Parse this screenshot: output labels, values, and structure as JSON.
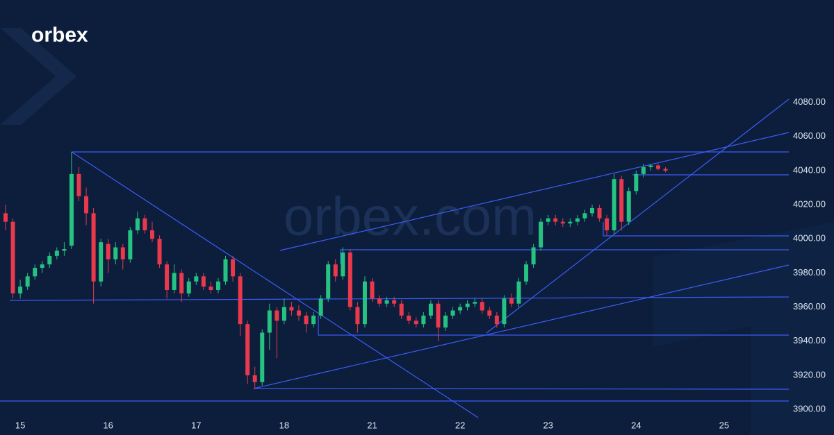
{
  "logo": "orbex",
  "watermark": "orbex.com",
  "chart_data": {
    "type": "candlestick",
    "up_color": "#26c281",
    "down_color": "#e8394d",
    "ylim": [
      3885,
      4140
    ],
    "yticks": [
      {
        "value": 3900,
        "label": "3900.00"
      },
      {
        "value": 3920,
        "label": "3920.00"
      },
      {
        "value": 3940,
        "label": "3940.00"
      },
      {
        "value": 3960,
        "label": "3960.00"
      },
      {
        "value": 3980,
        "label": "3980.00"
      },
      {
        "value": 4000,
        "label": "4000.00"
      },
      {
        "value": 4020,
        "label": "4020.00"
      },
      {
        "value": 4040,
        "label": "4040.00"
      },
      {
        "value": 4060,
        "label": "4060.00"
      },
      {
        "value": 4080,
        "label": "4080.00"
      }
    ],
    "categories": [
      null,
      null,
      "15",
      null,
      null,
      null,
      null,
      null,
      null,
      null,
      null,
      null,
      null,
      null,
      "16",
      null,
      null,
      null,
      null,
      null,
      null,
      null,
      null,
      null,
      null,
      null,
      "17",
      null,
      null,
      null,
      null,
      null,
      null,
      null,
      null,
      null,
      null,
      null,
      "18",
      null,
      null,
      null,
      null,
      null,
      null,
      null,
      null,
      null,
      null,
      null,
      "21",
      null,
      null,
      null,
      null,
      null,
      null,
      null,
      null,
      null,
      null,
      null,
      "22",
      null,
      null,
      null,
      null,
      null,
      null,
      null,
      null,
      null,
      null,
      null,
      "23",
      null,
      null,
      null,
      null,
      null,
      null,
      null,
      null,
      null,
      null,
      null,
      "24",
      null,
      null,
      null,
      null,
      null,
      null,
      null,
      null,
      null,
      null,
      null,
      "25"
    ],
    "open": [
      4015,
      4010,
      3968,
      3972,
      3978,
      3983,
      3985,
      3990,
      3993,
      3996,
      4038,
      4025,
      4015,
      3975,
      3997,
      3988,
      3995,
      3988,
      4005,
      4012,
      4005,
      4000,
      3985,
      3970,
      3980,
      3968,
      3975,
      3978,
      3972,
      3970,
      3975,
      3988,
      3978,
      3950,
      3920,
      3916,
      3945,
      3958,
      3952,
      3960,
      3958,
      3955,
      3950,
      3955,
      3965,
      3985,
      3978,
      3992,
      3960,
      3950,
      3975,
      3965,
      3962,
      3964,
      3962,
      3955,
      3952,
      3950,
      3955,
      3962,
      3948,
      3955,
      3958,
      3960,
      3962,
      3963,
      3958,
      3955,
      3950,
      3965,
      3962,
      3975,
      3985,
      3995,
      4010,
      4012,
      4010,
      4009,
      4010,
      4012,
      4015,
      4018,
      4012,
      4005,
      4035,
      4010,
      4028,
      4038,
      4042,
      4043,
      4041,
      null,
      null,
      null,
      null,
      null,
      null,
      null,
      null
    ],
    "high": [
      4020,
      4012,
      3976,
      3980,
      3985,
      3987,
      3992,
      3995,
      3998,
      4051,
      4042,
      4030,
      4018,
      4000,
      4000,
      3998,
      3997,
      4007,
      4016,
      4014,
      4010,
      4002,
      3987,
      3985,
      3982,
      3977,
      3980,
      3980,
      3975,
      3977,
      3990,
      3990,
      3980,
      3952,
      3925,
      3947,
      3962,
      3960,
      3965,
      3963,
      3961,
      3957,
      3957,
      3967,
      3987,
      3988,
      3995,
      3994,
      3963,
      3978,
      3977,
      3967,
      3966,
      3966,
      3964,
      3957,
      3954,
      3957,
      3964,
      3964,
      3957,
      3960,
      3962,
      3964,
      3965,
      3965,
      3960,
      3957,
      3967,
      3968,
      3977,
      3987,
      3997,
      4012,
      4014,
      4014,
      4012,
      4012,
      4014,
      4017,
      4020,
      4020,
      4014,
      4038,
      4037,
      4030,
      4040,
      4044,
      4044,
      4044,
      4042,
      null,
      null,
      null,
      null,
      null,
      null,
      null,
      null
    ],
    "low": [
      4005,
      3965,
      3965,
      3970,
      3976,
      3980,
      3983,
      3988,
      3990,
      3994,
      4022,
      4008,
      3962,
      3972,
      3980,
      3985,
      3982,
      3986,
      4003,
      4003,
      3998,
      3983,
      3965,
      3968,
      3963,
      3966,
      3973,
      3970,
      3968,
      3968,
      3973,
      3975,
      3943,
      3915,
      3912,
      3914,
      3935,
      3930,
      3950,
      3955,
      3952,
      3945,
      3948,
      3953,
      3963,
      3975,
      3976,
      3958,
      3945,
      3948,
      3963,
      3960,
      3960,
      3960,
      3953,
      3950,
      3948,
      3948,
      3953,
      3940,
      3946,
      3953,
      3956,
      3958,
      3960,
      3956,
      3953,
      3948,
      3948,
      3960,
      3960,
      3973,
      3983,
      3993,
      4008,
      4008,
      4007,
      4007,
      4008,
      4010,
      4013,
      4010,
      4002,
      4003,
      4005,
      4008,
      4026,
      4036,
      4040,
      4040,
      4039,
      null,
      null,
      null,
      null,
      null,
      null,
      null,
      null
    ],
    "close": [
      4010,
      3968,
      3972,
      3978,
      3983,
      3985,
      3990,
      3993,
      3994,
      4038,
      4025,
      4015,
      3975,
      3998,
      3988,
      3995,
      3988,
      4005,
      4012,
      4005,
      4000,
      3985,
      3970,
      3980,
      3968,
      3975,
      3978,
      3972,
      3970,
      3975,
      3988,
      3978,
      3950,
      3920,
      3916,
      3945,
      3958,
      3952,
      3960,
      3958,
      3955,
      3950,
      3955,
      3965,
      3985,
      3978,
      3992,
      3960,
      3950,
      3975,
      3965,
      3962,
      3964,
      3962,
      3955,
      3952,
      3950,
      3955,
      3962,
      3948,
      3955,
      3958,
      3960,
      3962,
      3963,
      3958,
      3955,
      3950,
      3965,
      3962,
      3975,
      3985,
      3995,
      4010,
      4012,
      4010,
      4009,
      4010,
      4012,
      4015,
      4018,
      4012,
      4005,
      4035,
      4010,
      4028,
      4038,
      4042,
      4043,
      4041,
      4040,
      null,
      null,
      null,
      null,
      null,
      null,
      null,
      null
    ]
  }
}
